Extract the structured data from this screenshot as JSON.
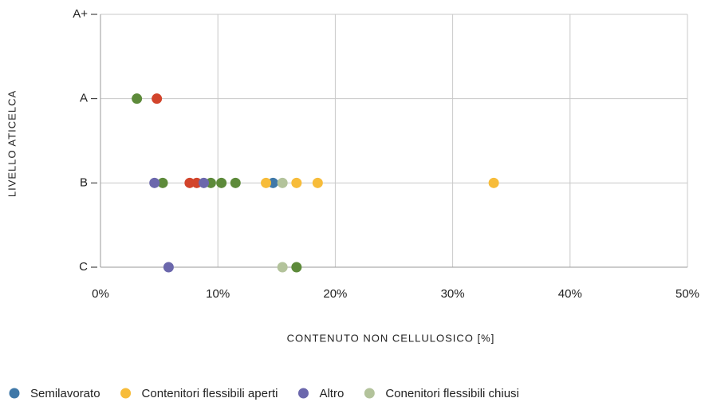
{
  "chart_data": {
    "type": "scatter",
    "x_label": "CONTENUTO NON CELLULOSICO [%]",
    "y_label": "LIVELLO ATICELCA",
    "xlim": [
      0,
      50
    ],
    "xticks": [
      {
        "value": 0,
        "label": "0%"
      },
      {
        "value": 10,
        "label": "10%"
      },
      {
        "value": 20,
        "label": "20%"
      },
      {
        "value": 30,
        "label": "30%"
      },
      {
        "value": 40,
        "label": "40%"
      },
      {
        "value": 50,
        "label": "50%"
      }
    ],
    "y_categories": [
      "C",
      "B",
      "A",
      "A+"
    ],
    "grid": true,
    "legend": "bottom",
    "series": [
      {
        "name": null,
        "color": "#d2442b",
        "x": [
          4.8,
          7.6,
          8.2
        ],
        "y": [
          "A",
          "B",
          "B"
        ]
      },
      {
        "name": null,
        "color": "#5d8a3a",
        "x": [
          3.1,
          5.3,
          9.4,
          10.3,
          11.5,
          16.7
        ],
        "y": [
          "A",
          "B",
          "B",
          "B",
          "B",
          "C"
        ]
      },
      {
        "name": "Semilavorato",
        "color": "#3f78a8",
        "x": [
          14.7
        ],
        "y": [
          "B"
        ]
      },
      {
        "name": "Contenitori flessibili aperti",
        "color": "#f7bc3a",
        "x": [
          14.1,
          16.7,
          18.5,
          33.5
        ],
        "y": [
          "B",
          "B",
          "B",
          "B"
        ]
      },
      {
        "name": "Altro",
        "color": "#6b67ac",
        "x": [
          4.6,
          8.8,
          5.8
        ],
        "y": [
          "B",
          "B",
          "C"
        ]
      },
      {
        "name": "Conenitori flessibili chiusi",
        "color": "#b3c39b",
        "x": [
          15.5,
          15.5
        ],
        "y": [
          "B",
          "C"
        ]
      }
    ]
  }
}
